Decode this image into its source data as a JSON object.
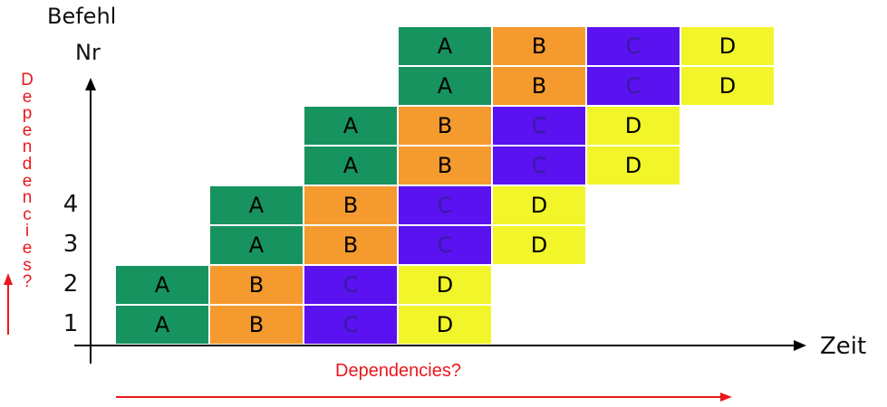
{
  "y_axis_label_line1": "Befehl",
  "y_axis_label_line2": "Nr",
  "x_axis_label": "Zeit",
  "y_ticks": [
    "1",
    "2",
    "3",
    "4"
  ],
  "stages": [
    "A",
    "B",
    "C",
    "D"
  ],
  "colors": {
    "A": "#17935f",
    "B": "#f59a2e",
    "C": "#5a12f0",
    "D": "#f1f52a",
    "annotation": "#e8181c",
    "axis": "#000000"
  },
  "instructions": [
    {
      "row": 1,
      "start_slot": 0
    },
    {
      "row": 2,
      "start_slot": 0
    },
    {
      "row": 3,
      "start_slot": 1
    },
    {
      "row": 4,
      "start_slot": 1
    },
    {
      "row": 5,
      "start_slot": 2
    },
    {
      "row": 6,
      "start_slot": 2
    },
    {
      "row": 7,
      "start_slot": 3
    },
    {
      "row": 8,
      "start_slot": 3
    }
  ],
  "annotations": {
    "horizontal": "Dependencies?",
    "vertical": "Dependencies?"
  }
}
